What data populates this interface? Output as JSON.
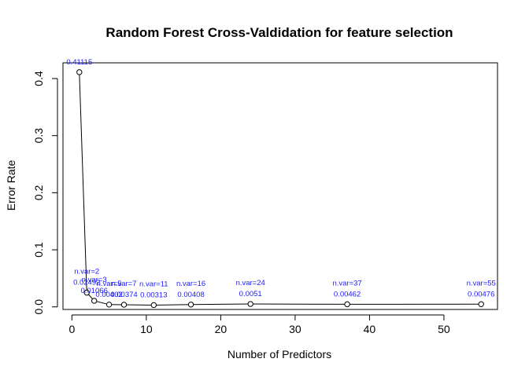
{
  "chart_data": {
    "type": "line",
    "title": "Random Forest Cross-Valdidation for feature selection",
    "xlabel": "Number of Predictors",
    "ylabel": "Error Rate",
    "xlim": [
      -1.2,
      57.2
    ],
    "ylim": [
      -0.0045,
      0.4275
    ],
    "xticks": [
      0,
      10,
      20,
      30,
      40,
      50
    ],
    "yticks": [
      0.0,
      0.1,
      0.2,
      0.3,
      0.4
    ],
    "ytick_labels": [
      "0.0",
      "0.1",
      "0.2",
      "0.3",
      "0.4"
    ],
    "series": [
      {
        "x": [
          1,
          2,
          3,
          5,
          7,
          11,
          16,
          24,
          37,
          55
        ],
        "y": [
          0.41115,
          0.02492,
          0.01066,
          0.00402,
          0.00374,
          0.00313,
          0.00408,
          0.0051,
          0.00462,
          0.00476
        ]
      }
    ],
    "annotations": [
      {
        "x": 1,
        "var_label": "",
        "err_label": "0.41115"
      },
      {
        "x": 2,
        "var_label": "n.var=2",
        "err_label": "0.02492"
      },
      {
        "x": 3,
        "var_label": "n.var=3",
        "err_label": "0.01066"
      },
      {
        "x": 5,
        "var_label": "n.var=5",
        "err_label": "0.00402"
      },
      {
        "x": 7,
        "var_label": "n.var=7",
        "err_label": "0.00374"
      },
      {
        "x": 11,
        "var_label": "n.var=11",
        "err_label": "0.00313"
      },
      {
        "x": 16,
        "var_label": "n.var=16",
        "err_label": "0.00408"
      },
      {
        "x": 24,
        "var_label": "n.var=24",
        "err_label": "0.0051"
      },
      {
        "x": 37,
        "var_label": "n.var=37",
        "err_label": "0.00462"
      },
      {
        "x": 55,
        "var_label": "n.var=55",
        "err_label": "0.00476"
      }
    ],
    "grid": false,
    "legend": "none",
    "line_color": "#000000",
    "annotation_color": "#1a1aff"
  }
}
